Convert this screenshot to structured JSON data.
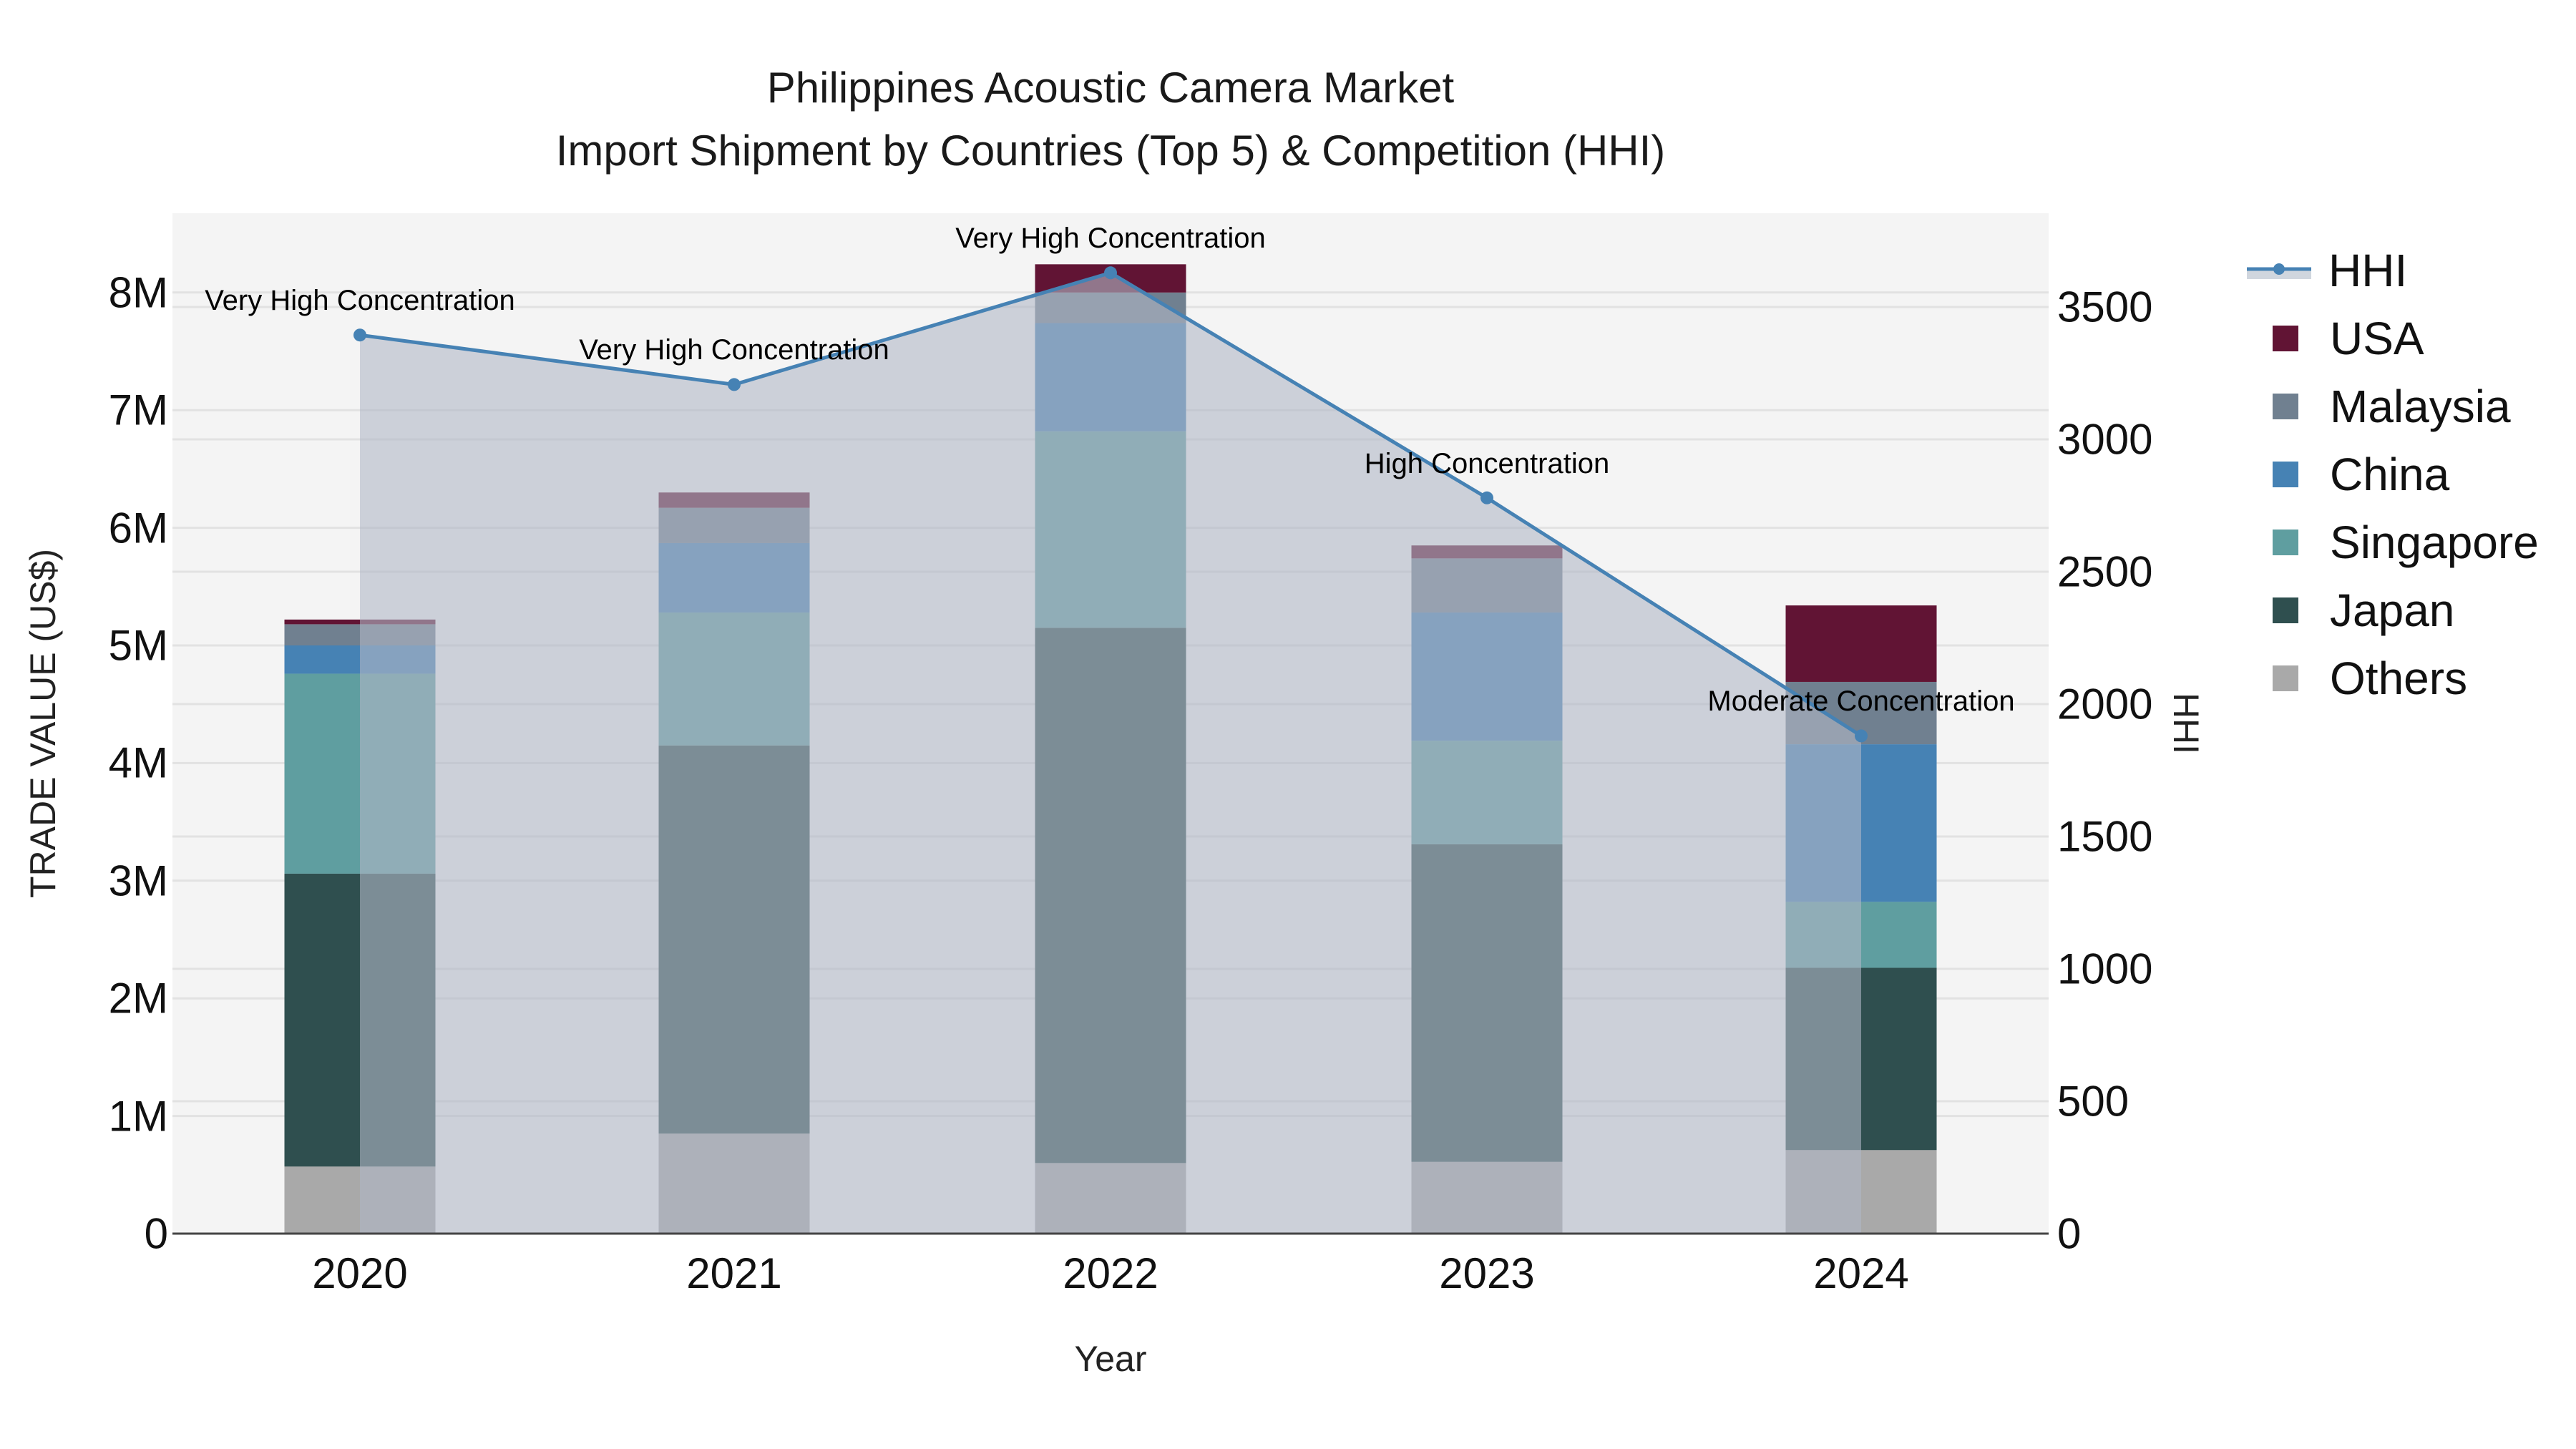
{
  "header": {
    "title_line1": "Philippines Acoustic Camera Market",
    "title_line2": "Import Shipment by Countries (Top 5) & Competition (HHI)"
  },
  "axes": {
    "x_title": "Year",
    "y_left_title": "TRADE VALUE (US$)",
    "y_right_title": "HHI",
    "y_left_ticks": [
      "0",
      "1M",
      "2M",
      "3M",
      "4M",
      "5M",
      "6M",
      "7M",
      "8M"
    ],
    "y_right_ticks": [
      "0",
      "500",
      "1000",
      "1500",
      "2000",
      "2500",
      "3000",
      "3500"
    ],
    "x_ticks": [
      "2020",
      "2021",
      "2022",
      "2023",
      "2024"
    ]
  },
  "legend": {
    "items": [
      {
        "label": "HHI",
        "color": "#4682b4",
        "kind": "line"
      },
      {
        "label": "USA",
        "color": "#611434",
        "kind": "box"
      },
      {
        "label": "Malaysia",
        "color": "#708090",
        "kind": "box"
      },
      {
        "label": "China",
        "color": "#4682b4",
        "kind": "box"
      },
      {
        "label": "Singapore",
        "color": "#5f9ea0",
        "kind": "box"
      },
      {
        "label": "Japan",
        "color": "#2f4f4f",
        "kind": "box"
      },
      {
        "label": "Others",
        "color": "#a9a9a9",
        "kind": "box"
      }
    ]
  },
  "annotations": [
    {
      "year": "2020",
      "text": "Very High Concentration"
    },
    {
      "year": "2021",
      "text": "Very High Concentration"
    },
    {
      "year": "2022",
      "text": "Very High Concentration"
    },
    {
      "year": "2023",
      "text": "High Concentration"
    },
    {
      "year": "2024",
      "text": "Moderate Concentration"
    }
  ],
  "chart_data": {
    "type": "bar",
    "subtype": "stacked bar + line (secondary axis, area fill)",
    "title": "Philippines Acoustic Camera Market — Import Shipment by Countries (Top 5) & Competition (HHI)",
    "xlabel": "Year",
    "ylabel": "TRADE VALUE (US$)",
    "y2label": "HHI",
    "categories": [
      "2020",
      "2021",
      "2022",
      "2023",
      "2024"
    ],
    "ylim": [
      0,
      8600000
    ],
    "y2lim": [
      0,
      3850
    ],
    "grid": true,
    "legend_position": "right",
    "series": [
      {
        "name": "Others",
        "color": "#a9a9a9",
        "values": [
          570000,
          850000,
          600000,
          610000,
          710000
        ]
      },
      {
        "name": "Japan",
        "color": "#2f4f4f",
        "values": [
          2490000,
          3300000,
          4550000,
          2700000,
          1550000
        ]
      },
      {
        "name": "Singapore",
        "color": "#5f9ea0",
        "values": [
          1700000,
          1130000,
          1670000,
          880000,
          560000
        ]
      },
      {
        "name": "China",
        "color": "#4682b4",
        "values": [
          240000,
          590000,
          920000,
          1090000,
          1340000
        ]
      },
      {
        "name": "Malaysia",
        "color": "#708090",
        "values": [
          180000,
          300000,
          260000,
          460000,
          530000
        ]
      },
      {
        "name": "USA",
        "color": "#611434",
        "values": [
          40000,
          130000,
          240000,
          110000,
          650000
        ]
      }
    ],
    "line_series": {
      "name": "HHI",
      "axis": "right",
      "color": "#4682b4",
      "values": [
        3394,
        3207,
        3629,
        2779,
        1880
      ]
    },
    "annotations": [
      "Very High Concentration",
      "Very High Concentration",
      "Very High Concentration",
      "High Concentration",
      "Moderate Concentration"
    ]
  }
}
